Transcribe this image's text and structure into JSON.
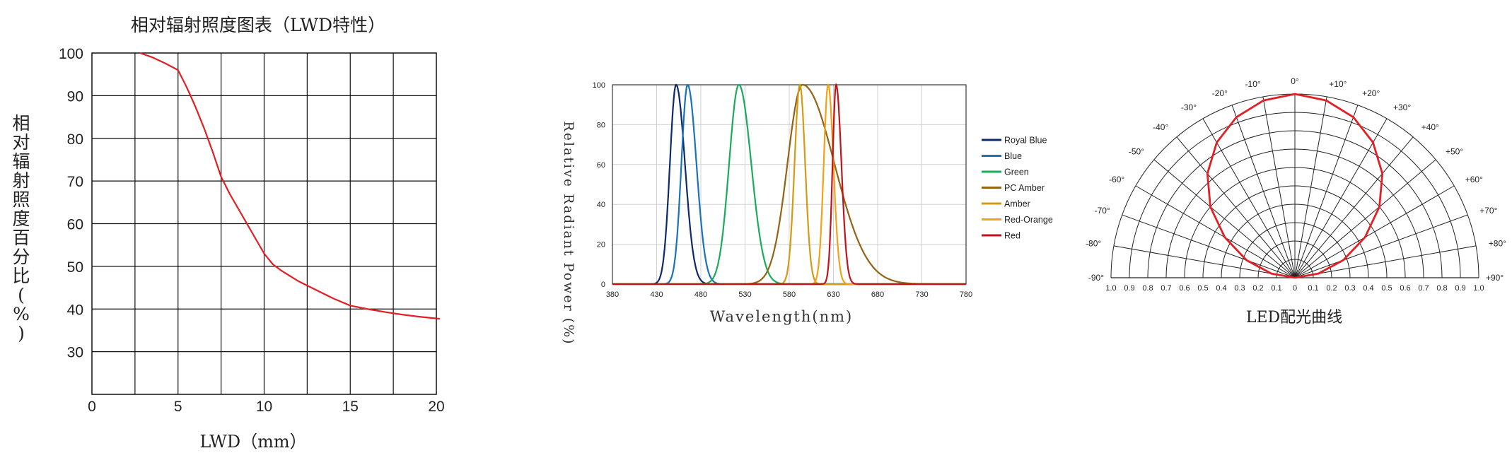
{
  "chart_data": [
    {
      "type": "line",
      "title": "相对辐射照度图表（LWD特性）",
      "xlabel": "LWD（mm）",
      "ylabel": "相对辐射照度百分比(%)",
      "xlim": [
        0,
        20
      ],
      "ylim": [
        20,
        100
      ],
      "x_ticks": [
        "0",
        "5",
        "10",
        "15",
        "20"
      ],
      "y_ticks": [
        "30",
        "40",
        "50",
        "60",
        "70",
        "80",
        "90",
        "100"
      ],
      "x_tick_values": [
        0,
        5,
        10,
        15,
        20
      ],
      "y_tick_values": [
        30,
        40,
        50,
        60,
        70,
        80,
        90,
        100
      ],
      "grid": true,
      "series": [
        {
          "color": "#e31e24",
          "x": [
            2.8,
            3.5,
            4.3,
            5.0,
            5.5,
            6.0,
            6.5,
            7.0,
            7.5,
            8.0,
            8.5,
            9.0,
            9.5,
            10.0,
            10.5,
            11.0,
            12.0,
            13.0,
            14.0,
            15.0,
            16.0,
            17.0,
            18.0,
            19.0,
            20.2
          ],
          "y": [
            100,
            99,
            97.5,
            96,
            92,
            87.5,
            82.5,
            77,
            71,
            67,
            63.5,
            60,
            56.5,
            53,
            50.5,
            49,
            46.5,
            44.5,
            42.5,
            40.8,
            40.0,
            39.3,
            38.7,
            38.2,
            37.7
          ]
        }
      ]
    },
    {
      "type": "line",
      "xlabel": "Wavelength(nm)",
      "ylabel": "Relative Radiant Power (%)",
      "xlim": [
        380,
        780
      ],
      "ylim": [
        0,
        100
      ],
      "x_ticks": [
        "380",
        "430",
        "480",
        "530",
        "580",
        "630",
        "680",
        "730",
        "780"
      ],
      "y_ticks": [
        "0",
        "20",
        "40",
        "60",
        "80",
        "100"
      ],
      "x_tick_values": [
        380,
        430,
        480,
        530,
        580,
        630,
        680,
        730,
        780
      ],
      "y_tick_values": [
        0,
        20,
        40,
        60,
        80,
        100
      ],
      "grid": true,
      "legend": "right",
      "series": [
        {
          "name": "Royal Blue",
          "color": "#0d2a6b",
          "peak": 452,
          "w_left": 7,
          "w_right": 10
        },
        {
          "name": "Blue",
          "color": "#1a72b8",
          "peak": 465,
          "w_left": 7,
          "w_right": 10
        },
        {
          "name": "Green",
          "color": "#1aab5a",
          "peak": 523,
          "w_left": 11,
          "w_right": 14
        },
        {
          "name": "PC Amber",
          "color": "#956214",
          "peak": 595,
          "w_left": 17,
          "w_right": 36
        },
        {
          "name": "Amber",
          "color": "#d49a15",
          "peak": 592,
          "w_left": 6,
          "w_right": 6
        },
        {
          "name": "Red-Orange",
          "color": "#f1a219",
          "peak": 624,
          "w_left": 5,
          "w_right": 6
        },
        {
          "name": "Red",
          "color": "#c0141c",
          "peak": 633,
          "w_left": 4,
          "w_right": 6
        }
      ]
    },
    {
      "type": "polar",
      "title": "LED配光曲线",
      "radial_ticks": [
        "1.0",
        "0.9",
        "0.8",
        "0.7",
        "0.6",
        "0.5",
        "0.4",
        "0.3",
        "0.2",
        "0.1",
        "0",
        "0.1",
        "0.2",
        "0.3",
        "0.4",
        "0.5",
        "0.6",
        "0.7",
        "0.8",
        "0.9",
        "1.0"
      ],
      "angle_labels": [
        "-90°",
        "-80°",
        "-70°",
        "-60°",
        "-50°",
        "-40°",
        "-30°",
        "-20°",
        "-10°",
        "0°",
        "+10°",
        "+20°",
        "+30°",
        "+40°",
        "+50°",
        "+60°",
        "+70°",
        "+80°",
        "+90°"
      ],
      "angle_values": [
        -90,
        -80,
        -70,
        -60,
        -50,
        -40,
        -30,
        -20,
        -10,
        0,
        10,
        20,
        30,
        40,
        50,
        60,
        70,
        80,
        90
      ],
      "series": [
        {
          "color": "#e31e24",
          "angles": [
            -90,
            -80,
            -70,
            -60,
            -50,
            -40,
            -30,
            -20,
            -10,
            0,
            10,
            20,
            30,
            40,
            50,
            60,
            70,
            80,
            90
          ],
          "values": [
            0,
            0.13,
            0.28,
            0.44,
            0.6,
            0.74,
            0.85,
            0.93,
            0.98,
            1.0,
            0.98,
            0.93,
            0.85,
            0.74,
            0.6,
            0.44,
            0.28,
            0.13,
            0
          ]
        }
      ]
    }
  ]
}
